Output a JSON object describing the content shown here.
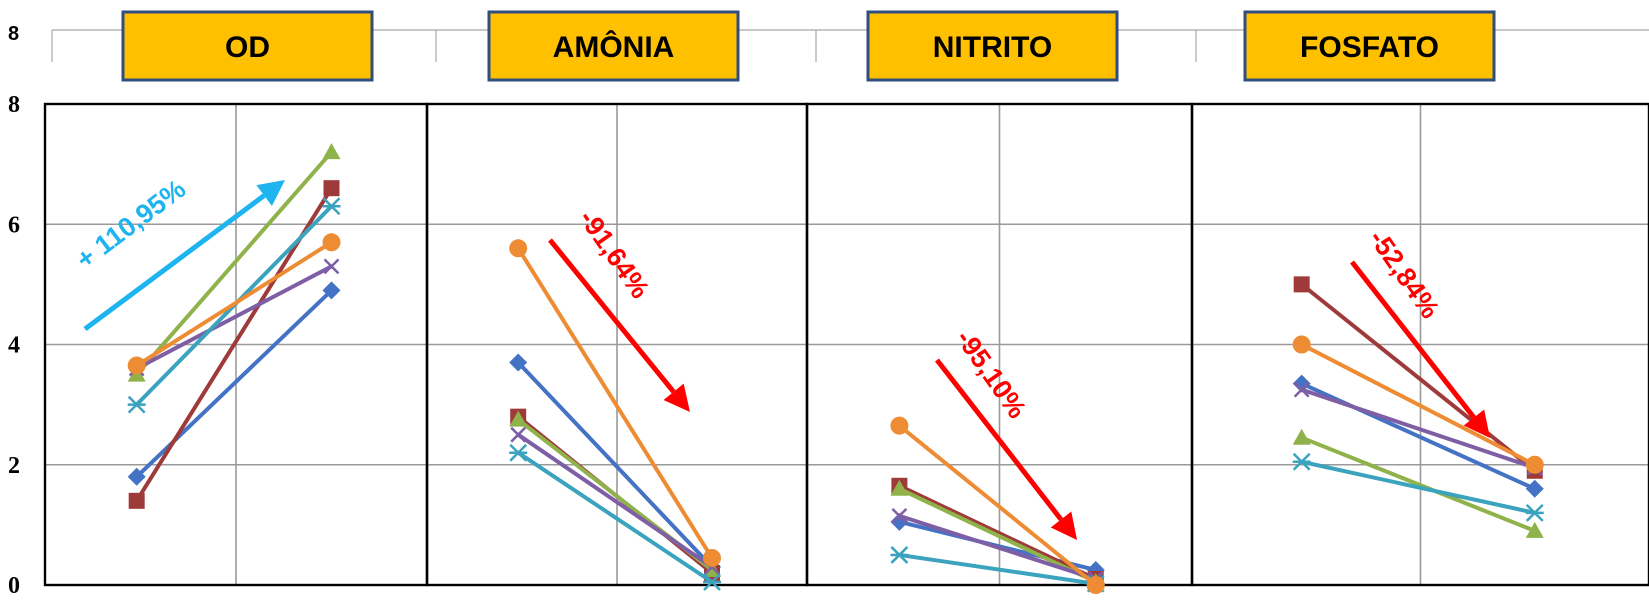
{
  "header": {
    "top_tick_label": "8",
    "titles": [
      "OD",
      "AMÔNIA",
      "NITRITO",
      "FOSFATO"
    ]
  },
  "colors": {
    "title_box_fill": "#FFC000",
    "title_box_border": "#2F4E7E",
    "increase_arrow": "#1EB4F0",
    "decrease_arrow": "#FF0000",
    "grid": "#9A9A9A",
    "panel_border": "#000000"
  },
  "chart_data": {
    "type": "line",
    "panel_titles": [
      "OD",
      "AMÔNIA",
      "NITRITO",
      "FOSFATO"
    ],
    "ylim": [
      0,
      8
    ],
    "yticks": [
      "0",
      "2",
      "4",
      "6",
      "8"
    ],
    "grid": true,
    "legend": "none",
    "series_colors": [
      "#4472C4",
      "#9E3A3A",
      "#8FB24A",
      "#7E5FA6",
      "#3BA3BE",
      "#EE8C33"
    ],
    "series_markers": [
      "diamond",
      "square",
      "triangle",
      "x",
      "star",
      "circle"
    ],
    "panels": [
      {
        "name": "OD",
        "change_label": "+ 110,95%",
        "direction": "up",
        "series": [
          {
            "values": [
              1.8,
              4.9
            ]
          },
          {
            "values": [
              1.4,
              6.6
            ]
          },
          {
            "values": [
              3.5,
              7.2
            ]
          },
          {
            "values": [
              3.6,
              5.3
            ]
          },
          {
            "values": [
              3.0,
              6.3
            ]
          },
          {
            "values": [
              3.65,
              5.7
            ]
          }
        ]
      },
      {
        "name": "AMÔNIA",
        "change_label": "-91,64%",
        "direction": "down",
        "series": [
          {
            "values": [
              3.7,
              0.3
            ]
          },
          {
            "values": [
              2.8,
              0.2
            ]
          },
          {
            "values": [
              2.75,
              0.25
            ]
          },
          {
            "values": [
              2.5,
              0.3
            ]
          },
          {
            "values": [
              2.2,
              0.05
            ]
          },
          {
            "values": [
              5.6,
              0.45
            ]
          }
        ]
      },
      {
        "name": "NITRITO",
        "change_label": "-95,10%",
        "direction": "down",
        "series": [
          {
            "values": [
              1.05,
              0.25
            ]
          },
          {
            "values": [
              1.65,
              0.1
            ]
          },
          {
            "values": [
              1.6,
              0.05
            ]
          },
          {
            "values": [
              1.15,
              0.1
            ]
          },
          {
            "values": [
              0.5,
              0.02
            ]
          },
          {
            "values": [
              2.65,
              0.0
            ]
          }
        ]
      },
      {
        "name": "FOSFATO",
        "change_label": "-52,84%",
        "direction": "down",
        "series": [
          {
            "values": [
              3.35,
              1.6
            ]
          },
          {
            "values": [
              5.0,
              1.9
            ]
          },
          {
            "values": [
              2.45,
              0.9
            ]
          },
          {
            "values": [
              3.25,
              1.95
            ]
          },
          {
            "values": [
              2.05,
              1.2
            ]
          },
          {
            "values": [
              4.0,
              2.0
            ]
          }
        ]
      }
    ]
  }
}
